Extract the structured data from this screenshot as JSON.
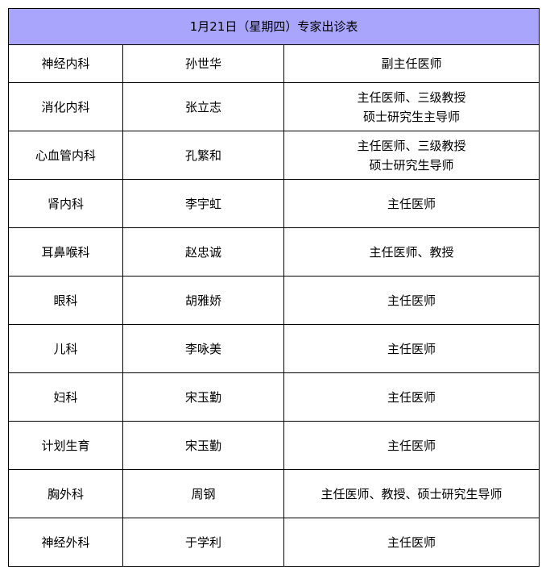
{
  "title": "1月21日（星期四）专家出诊表",
  "header_color": "#a9a5fd",
  "rows": [
    {
      "dept": "神经内科",
      "doctor": "孙世华",
      "title_lines": [
        "副主任医师"
      ]
    },
    {
      "dept": "消化内科",
      "doctor": "张立志",
      "title_lines": [
        "主任医师、三级教授",
        "硕士研究生主导师"
      ]
    },
    {
      "dept": "心血管内科",
      "doctor": "孔繁和",
      "title_lines": [
        "主任医师、三级教授",
        "硕士研究生导师"
      ]
    },
    {
      "dept": "肾内科",
      "doctor": "李宇虹",
      "title_lines": [
        "主任医师"
      ]
    },
    {
      "dept": "耳鼻喉科",
      "doctor": "赵忠诚",
      "title_lines": [
        "主任医师、教授"
      ]
    },
    {
      "dept": "眼科",
      "doctor": "胡雅娇",
      "title_lines": [
        "主任医师"
      ]
    },
    {
      "dept": "儿科",
      "doctor": "李咏美",
      "title_lines": [
        "主任医师"
      ]
    },
    {
      "dept": "妇科",
      "doctor": "宋玉勤",
      "title_lines": [
        "主任医师"
      ]
    },
    {
      "dept": "计划生育",
      "doctor": "宋玉勤",
      "title_lines": [
        "主任医师"
      ]
    },
    {
      "dept": "胸外科",
      "doctor": "周钢",
      "title_lines": [
        "主任医师、教授、硕士研究生导师"
      ]
    },
    {
      "dept": "神经外科",
      "doctor": "于学利",
      "title_lines": [
        "主任医师"
      ]
    }
  ]
}
